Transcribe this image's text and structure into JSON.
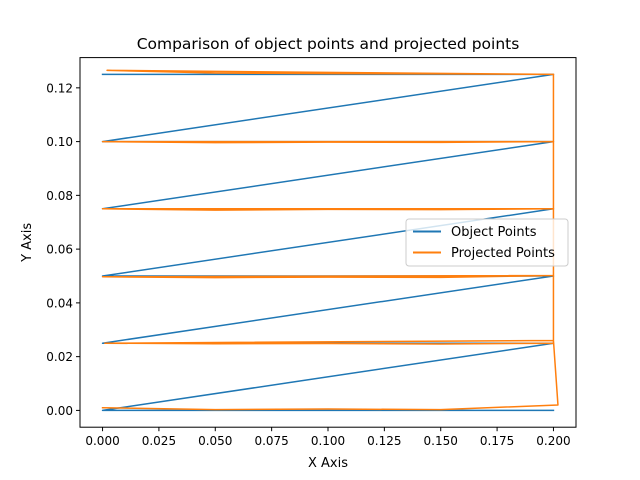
{
  "chart_data": {
    "type": "line",
    "title": "Comparison of object points and projected points",
    "xlabel": "X Axis",
    "ylabel": "Y Axis",
    "xlim": [
      -0.01,
      0.21
    ],
    "ylim": [
      -0.00625,
      0.13125
    ],
    "xticks": [
      0.0,
      0.025,
      0.05,
      0.075,
      0.1,
      0.125,
      0.15,
      0.175,
      0.2
    ],
    "xtick_labels": [
      "0.000",
      "0.025",
      "0.050",
      "0.075",
      "0.100",
      "0.125",
      "0.150",
      "0.175",
      "0.200"
    ],
    "yticks": [
      0.0,
      0.02,
      0.04,
      0.06,
      0.08,
      0.1,
      0.12
    ],
    "ytick_labels": [
      "0.00",
      "0.02",
      "0.04",
      "0.06",
      "0.08",
      "0.10",
      "0.12"
    ],
    "grid": false,
    "legend": "center-right",
    "series": [
      {
        "name": "Object Points",
        "color": "#1f77b4",
        "x": [
          0.2,
          0.0,
          0.2,
          0.0,
          0.2,
          0.0,
          0.2,
          0.0,
          0.2,
          0.0,
          0.2,
          0.0
        ],
        "y": [
          0.0,
          0.0,
          0.025,
          0.025,
          0.05,
          0.05,
          0.075,
          0.075,
          0.1,
          0.1,
          0.125,
          0.125
        ]
      },
      {
        "name": "Projected Points",
        "color": "#ff7f0e",
        "x": [
          0.0,
          0.05,
          0.1,
          0.15,
          0.202,
          0.2,
          0.001,
          0.05,
          0.1,
          0.15,
          0.2,
          0.2,
          0.0,
          0.05,
          0.1,
          0.15,
          0.2,
          0.2,
          0.0,
          0.05,
          0.1,
          0.15,
          0.2,
          0.2,
          0.0,
          0.05,
          0.1,
          0.15,
          0.2,
          0.2,
          0.002,
          0.05,
          0.1,
          0.15,
          0.2
        ],
        "y": [
          0.001,
          0.0003,
          0.0005,
          0.0003,
          0.002,
          0.026,
          0.025,
          0.0248,
          0.0249,
          0.0247,
          0.025,
          0.0502,
          0.0497,
          0.0494,
          0.0496,
          0.0495,
          0.0502,
          0.075,
          0.075,
          0.0745,
          0.0748,
          0.0747,
          0.075,
          0.1,
          0.1,
          0.0996,
          0.0998,
          0.0997,
          0.1,
          0.125,
          0.1265,
          0.1255,
          0.1253,
          0.1252,
          0.125
        ]
      }
    ]
  }
}
